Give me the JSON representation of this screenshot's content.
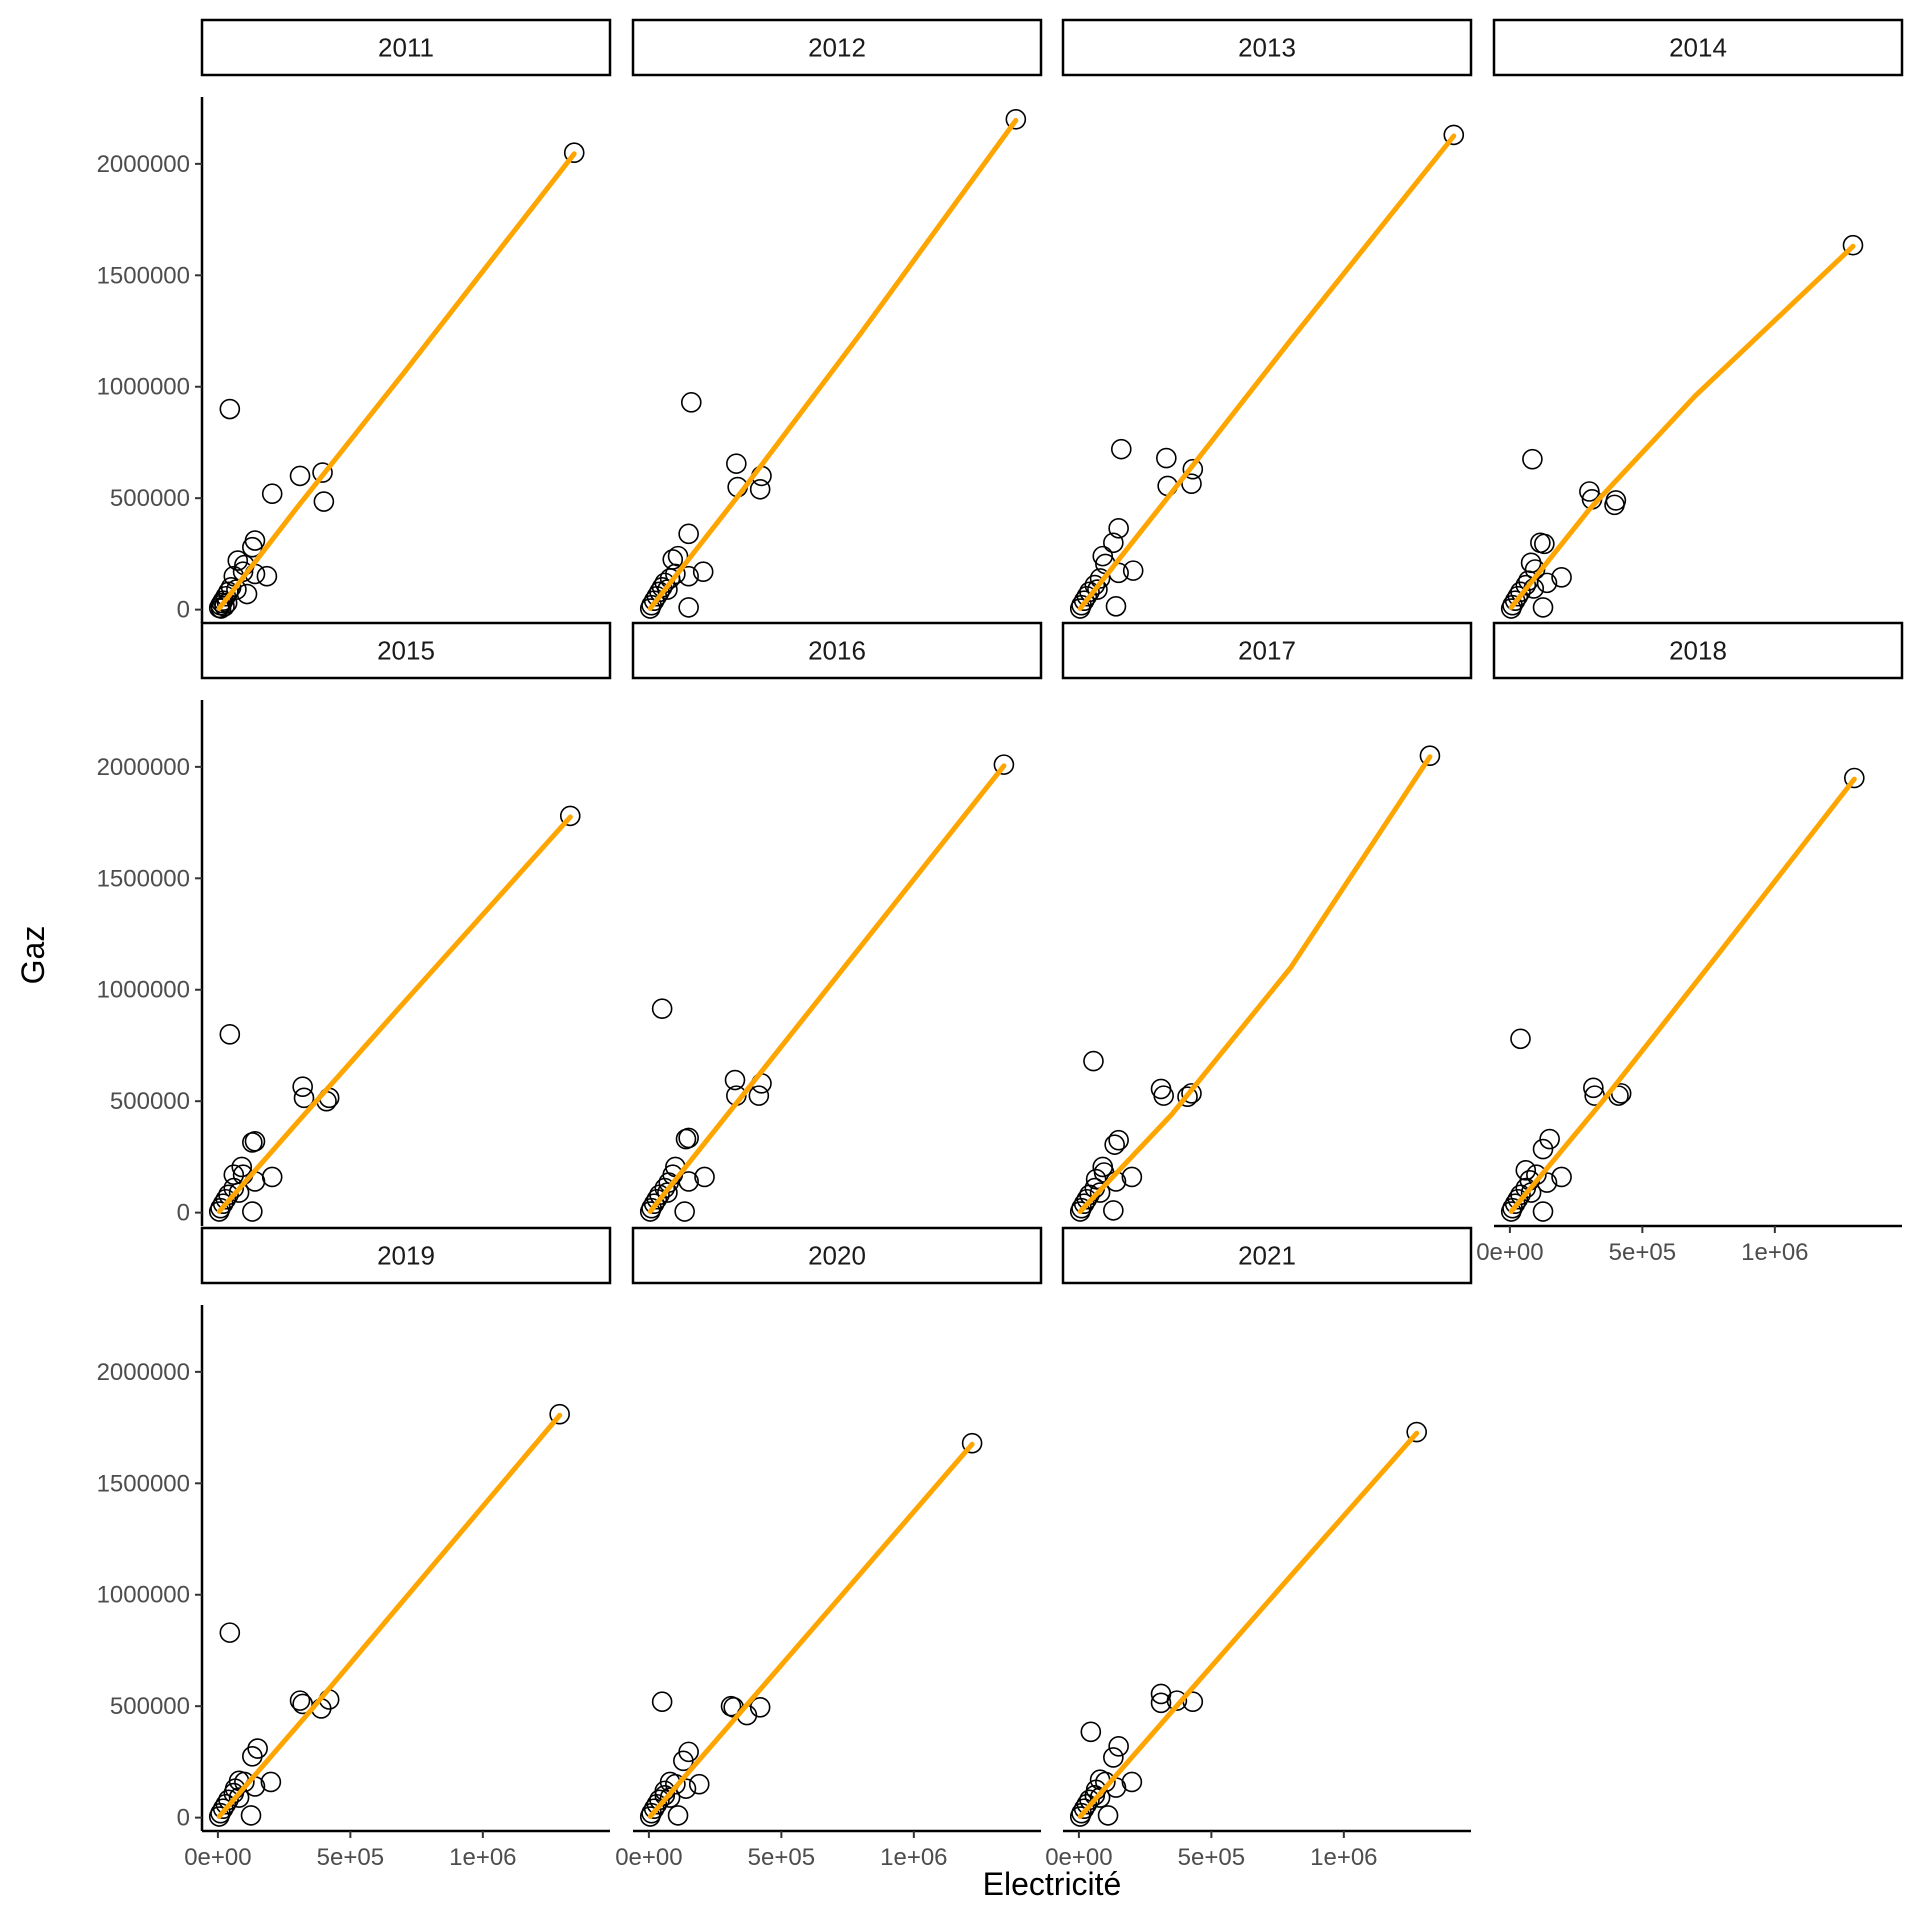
{
  "chart_data": {
    "type": "scatter",
    "xlabel": "Electricité",
    "ylabel": "Gaz",
    "xlim": [
      -60000,
      1480000
    ],
    "ylim": [
      -60000,
      2300000
    ],
    "x_ticks": [
      {
        "value": 0,
        "label": "0e+00"
      },
      {
        "value": 500000,
        "label": "5e+05"
      },
      {
        "value": 1000000,
        "label": "1e+06"
      }
    ],
    "y_ticks": [
      {
        "value": 0,
        "label": "0"
      },
      {
        "value": 500000,
        "label": "500000"
      },
      {
        "value": 1000000,
        "label": "1000000"
      },
      {
        "value": 1500000,
        "label": "1500000"
      },
      {
        "value": 2000000,
        "label": "2000000"
      }
    ],
    "grid": false,
    "legend": "none",
    "point_color": "#000000",
    "line_color": "#FFA500",
    "facets": [
      {
        "label": "2011",
        "points": [
          [
            1345000,
            2050000
          ],
          [
            45000,
            900000
          ],
          [
            395000,
            615000
          ],
          [
            310000,
            600000
          ],
          [
            205000,
            520000
          ],
          [
            400000,
            485000
          ],
          [
            140000,
            310000
          ],
          [
            130000,
            280000
          ],
          [
            75000,
            220000
          ],
          [
            100000,
            200000
          ],
          [
            95000,
            170000
          ],
          [
            140000,
            160000
          ],
          [
            185000,
            150000
          ],
          [
            110000,
            70000
          ],
          [
            60000,
            150000
          ],
          [
            50000,
            100000
          ],
          [
            70000,
            90000
          ],
          [
            40000,
            80000
          ],
          [
            30000,
            60000
          ],
          [
            20000,
            40000
          ],
          [
            15000,
            30000
          ],
          [
            10000,
            20000
          ],
          [
            25000,
            15000
          ],
          [
            5000,
            8000
          ],
          [
            12000,
            5000
          ],
          [
            35000,
            30000
          ]
        ],
        "fit": [
          [
            5000,
            5000
          ],
          [
            300000,
            460000
          ],
          [
            700000,
            1060000
          ],
          [
            1345000,
            2045000
          ]
        ]
      },
      {
        "label": "2012",
        "points": [
          [
            1385000,
            2200000
          ],
          [
            160000,
            930000
          ],
          [
            330000,
            655000
          ],
          [
            335000,
            550000
          ],
          [
            425000,
            600000
          ],
          [
            420000,
            540000
          ],
          [
            150000,
            340000
          ],
          [
            110000,
            240000
          ],
          [
            90000,
            225000
          ],
          [
            205000,
            170000
          ],
          [
            150000,
            150000
          ],
          [
            80000,
            140000
          ],
          [
            60000,
            120000
          ],
          [
            150000,
            10000
          ],
          [
            40000,
            80000
          ],
          [
            30000,
            60000
          ],
          [
            20000,
            40000
          ],
          [
            10000,
            20000
          ],
          [
            5000,
            5000
          ],
          [
            50000,
            100000
          ],
          [
            70000,
            90000
          ],
          [
            100000,
            160000
          ]
        ],
        "fit": [
          [
            5000,
            5000
          ],
          [
            350000,
            530000
          ],
          [
            800000,
            1240000
          ],
          [
            1385000,
            2195000
          ]
        ]
      },
      {
        "label": "2013",
        "points": [
          [
            1415000,
            2130000
          ],
          [
            160000,
            720000
          ],
          [
            330000,
            680000
          ],
          [
            335000,
            555000
          ],
          [
            430000,
            630000
          ],
          [
            425000,
            565000
          ],
          [
            150000,
            365000
          ],
          [
            130000,
            300000
          ],
          [
            90000,
            240000
          ],
          [
            100000,
            205000
          ],
          [
            205000,
            175000
          ],
          [
            150000,
            165000
          ],
          [
            80000,
            140000
          ],
          [
            140000,
            15000
          ],
          [
            40000,
            80000
          ],
          [
            30000,
            60000
          ],
          [
            20000,
            40000
          ],
          [
            10000,
            20000
          ],
          [
            5000,
            5000
          ],
          [
            60000,
            110000
          ],
          [
            70000,
            90000
          ]
        ],
        "fit": [
          [
            5000,
            5000
          ],
          [
            350000,
            525000
          ],
          [
            800000,
            1210000
          ],
          [
            1415000,
            2125000
          ]
        ]
      },
      {
        "label": "2014",
        "points": [
          [
            1295000,
            1635000
          ],
          [
            85000,
            675000
          ],
          [
            300000,
            530000
          ],
          [
            310000,
            495000
          ],
          [
            400000,
            490000
          ],
          [
            395000,
            470000
          ],
          [
            115000,
            300000
          ],
          [
            130000,
            295000
          ],
          [
            80000,
            210000
          ],
          [
            95000,
            180000
          ],
          [
            195000,
            145000
          ],
          [
            140000,
            120000
          ],
          [
            70000,
            130000
          ],
          [
            125000,
            10000
          ],
          [
            40000,
            80000
          ],
          [
            30000,
            60000
          ],
          [
            20000,
            40000
          ],
          [
            10000,
            20000
          ],
          [
            5000,
            5000
          ],
          [
            60000,
            110000
          ],
          [
            90000,
            95000
          ]
        ],
        "fit": [
          [
            5000,
            10000
          ],
          [
            300000,
            450000
          ],
          [
            700000,
            960000
          ],
          [
            1295000,
            1630000
          ]
        ]
      },
      {
        "label": "2015",
        "points": [
          [
            1330000,
            1780000
          ],
          [
            45000,
            800000
          ],
          [
            320000,
            565000
          ],
          [
            325000,
            515000
          ],
          [
            410000,
            500000
          ],
          [
            420000,
            515000
          ],
          [
            140000,
            320000
          ],
          [
            130000,
            315000
          ],
          [
            90000,
            205000
          ],
          [
            95000,
            170000
          ],
          [
            205000,
            160000
          ],
          [
            140000,
            140000
          ],
          [
            60000,
            170000
          ],
          [
            130000,
            5000
          ],
          [
            40000,
            80000
          ],
          [
            30000,
            60000
          ],
          [
            20000,
            40000
          ],
          [
            10000,
            20000
          ],
          [
            5000,
            5000
          ],
          [
            60000,
            110000
          ],
          [
            80000,
            90000
          ]
        ],
        "fit": [
          [
            5000,
            5000
          ],
          [
            300000,
            405000
          ],
          [
            700000,
            940000
          ],
          [
            1330000,
            1775000
          ]
        ]
      },
      {
        "label": "2016",
        "points": [
          [
            1340000,
            2010000
          ],
          [
            50000,
            915000
          ],
          [
            325000,
            595000
          ],
          [
            330000,
            525000
          ],
          [
            415000,
            525000
          ],
          [
            425000,
            580000
          ],
          [
            150000,
            335000
          ],
          [
            140000,
            330000
          ],
          [
            100000,
            205000
          ],
          [
            90000,
            170000
          ],
          [
            210000,
            160000
          ],
          [
            150000,
            140000
          ],
          [
            75000,
            135000
          ],
          [
            135000,
            5000
          ],
          [
            40000,
            80000
          ],
          [
            30000,
            60000
          ],
          [
            20000,
            40000
          ],
          [
            10000,
            20000
          ],
          [
            5000,
            5000
          ],
          [
            60000,
            110000
          ],
          [
            70000,
            90000
          ]
        ],
        "fit": [
          [
            5000,
            5000
          ],
          [
            350000,
            520000
          ],
          [
            800000,
            1195000
          ],
          [
            1340000,
            2005000
          ]
        ]
      },
      {
        "label": "2017",
        "points": [
          [
            1325000,
            2050000
          ],
          [
            55000,
            680000
          ],
          [
            310000,
            555000
          ],
          [
            320000,
            525000
          ],
          [
            410000,
            520000
          ],
          [
            425000,
            535000
          ],
          [
            150000,
            325000
          ],
          [
            135000,
            305000
          ],
          [
            90000,
            205000
          ],
          [
            95000,
            180000
          ],
          [
            200000,
            160000
          ],
          [
            140000,
            140000
          ],
          [
            65000,
            150000
          ],
          [
            130000,
            10000
          ],
          [
            40000,
            80000
          ],
          [
            30000,
            60000
          ],
          [
            20000,
            40000
          ],
          [
            10000,
            20000
          ],
          [
            5000,
            5000
          ],
          [
            60000,
            110000
          ],
          [
            80000,
            90000
          ]
        ],
        "fit": [
          [
            5000,
            5000
          ],
          [
            350000,
            440000
          ],
          [
            800000,
            1100000
          ],
          [
            1325000,
            2045000
          ]
        ]
      },
      {
        "label": "2018",
        "points": [
          [
            1300000,
            1950000
          ],
          [
            40000,
            780000
          ],
          [
            315000,
            560000
          ],
          [
            320000,
            525000
          ],
          [
            410000,
            525000
          ],
          [
            420000,
            535000
          ],
          [
            150000,
            330000
          ],
          [
            125000,
            285000
          ],
          [
            60000,
            190000
          ],
          [
            100000,
            170000
          ],
          [
            195000,
            160000
          ],
          [
            140000,
            135000
          ],
          [
            75000,
            145000
          ],
          [
            125000,
            5000
          ],
          [
            40000,
            80000
          ],
          [
            30000,
            60000
          ],
          [
            20000,
            40000
          ],
          [
            10000,
            20000
          ],
          [
            5000,
            5000
          ],
          [
            60000,
            110000
          ],
          [
            80000,
            90000
          ]
        ],
        "fit": [
          [
            5000,
            5000
          ],
          [
            350000,
            500000
          ],
          [
            800000,
            1180000
          ],
          [
            1300000,
            1945000
          ]
        ]
      },
      {
        "label": "2019",
        "points": [
          [
            1290000,
            1810000
          ],
          [
            45000,
            830000
          ],
          [
            310000,
            525000
          ],
          [
            320000,
            510000
          ],
          [
            390000,
            490000
          ],
          [
            420000,
            530000
          ],
          [
            150000,
            310000
          ],
          [
            130000,
            275000
          ],
          [
            80000,
            165000
          ],
          [
            100000,
            160000
          ],
          [
            200000,
            160000
          ],
          [
            140000,
            140000
          ],
          [
            65000,
            130000
          ],
          [
            125000,
            10000
          ],
          [
            40000,
            80000
          ],
          [
            30000,
            60000
          ],
          [
            20000,
            40000
          ],
          [
            10000,
            20000
          ],
          [
            5000,
            5000
          ],
          [
            60000,
            110000
          ],
          [
            80000,
            90000
          ]
        ],
        "fit": [
          [
            5000,
            5000
          ],
          [
            350000,
            480000
          ],
          [
            800000,
            1115000
          ],
          [
            1290000,
            1805000
          ]
        ]
      },
      {
        "label": "2020",
        "points": [
          [
            1220000,
            1680000
          ],
          [
            50000,
            520000
          ],
          [
            310000,
            500000
          ],
          [
            320000,
            495000
          ],
          [
            370000,
            460000
          ],
          [
            420000,
            495000
          ],
          [
            150000,
            295000
          ],
          [
            130000,
            255000
          ],
          [
            80000,
            160000
          ],
          [
            100000,
            150000
          ],
          [
            190000,
            150000
          ],
          [
            140000,
            130000
          ],
          [
            60000,
            120000
          ],
          [
            110000,
            10000
          ],
          [
            40000,
            80000
          ],
          [
            30000,
            60000
          ],
          [
            20000,
            40000
          ],
          [
            10000,
            20000
          ],
          [
            5000,
            5000
          ],
          [
            60000,
            100000
          ],
          [
            80000,
            90000
          ]
        ],
        "fit": [
          [
            5000,
            5000
          ],
          [
            300000,
            410000
          ],
          [
            700000,
            960000
          ],
          [
            1220000,
            1675000
          ]
        ]
      },
      {
        "label": "2021",
        "points": [
          [
            1275000,
            1730000
          ],
          [
            45000,
            385000
          ],
          [
            310000,
            555000
          ],
          [
            310000,
            515000
          ],
          [
            370000,
            525000
          ],
          [
            430000,
            520000
          ],
          [
            150000,
            320000
          ],
          [
            130000,
            270000
          ],
          [
            80000,
            170000
          ],
          [
            100000,
            160000
          ],
          [
            200000,
            160000
          ],
          [
            140000,
            135000
          ],
          [
            65000,
            125000
          ],
          [
            110000,
            10000
          ],
          [
            40000,
            80000
          ],
          [
            30000,
            60000
          ],
          [
            20000,
            40000
          ],
          [
            10000,
            20000
          ],
          [
            5000,
            5000
          ],
          [
            60000,
            100000
          ],
          [
            80000,
            90000
          ]
        ],
        "fit": [
          [
            5000,
            5000
          ],
          [
            350000,
            475000
          ],
          [
            800000,
            1085000
          ],
          [
            1275000,
            1725000
          ]
        ]
      }
    ]
  }
}
